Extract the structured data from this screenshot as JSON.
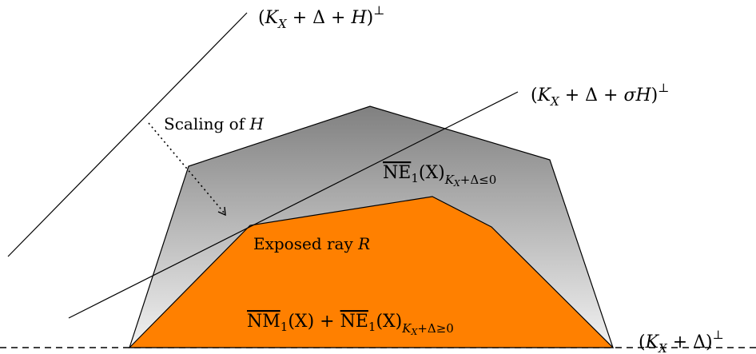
{
  "labels": {
    "line_top": "(K_X + Δ + H)^⊥",
    "line_sigma": "(K_X + Δ + σH)^⊥",
    "line_base": "(K_X + Δ)^⊥",
    "scaling": "Scaling of H",
    "cone_negative": "NE_1(X)_{K_X+Δ≤0}",
    "exposed_ray": "Exposed ray R",
    "cone_positive": "NM_1(X) + NE_1(X)_{K_X+Δ≥0}"
  },
  "text": {
    "paren_open": "(",
    "paren_close": ")",
    "K": "K",
    "X": "X",
    "plus": " + ",
    "delta": "Δ",
    "H": "H",
    "sigma": "σ",
    "perp": "⊥",
    "scaling_prefix": "Scaling of ",
    "exposed_prefix": "Exposed ray ",
    "R": "R",
    "NE": "NE",
    "NM": "NM",
    "one": "1",
    "arg": "(X)",
    "sub_neg": "K",
    "sub_neg_x": "X",
    "sub_neg_rest": "+Δ≤0",
    "sub_pos_rest": "+Δ≥0"
  },
  "colors": {
    "gray_top": "#808080",
    "gray_bottom": "#f2f2f2",
    "orange": "#ff8000",
    "stroke": "#000000"
  }
}
